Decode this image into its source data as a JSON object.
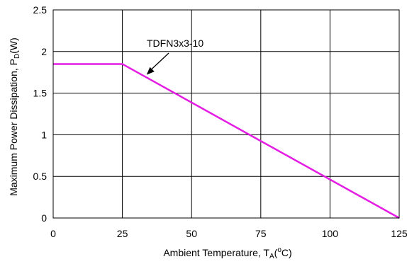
{
  "chart_data": {
    "type": "line",
    "xlabel": {
      "main": "Ambient Temperature, T",
      "sub": "A",
      "pre_sup": "(",
      "sup": "o",
      "post": "C)"
    },
    "ylabel": {
      "main": "Maximum Power Dissipation, P",
      "sub": "D",
      "post": "(W)"
    },
    "xlim": [
      0,
      125
    ],
    "ylim": [
      0,
      2.5
    ],
    "xticks": [
      "0",
      "25",
      "50",
      "75",
      "100",
      "125"
    ],
    "yticks": [
      "0",
      "0.5",
      "1",
      "1.5",
      "2",
      "2.5"
    ],
    "grid": true,
    "series": [
      {
        "color": "#e41ce4",
        "x": [
          0,
          25,
          125
        ],
        "y": [
          1.85,
          1.85,
          0
        ]
      }
    ],
    "annotations": [
      {
        "text": "TDFN3x3-10",
        "points_to": {
          "x": 34,
          "y": 1.67
        }
      }
    ]
  }
}
